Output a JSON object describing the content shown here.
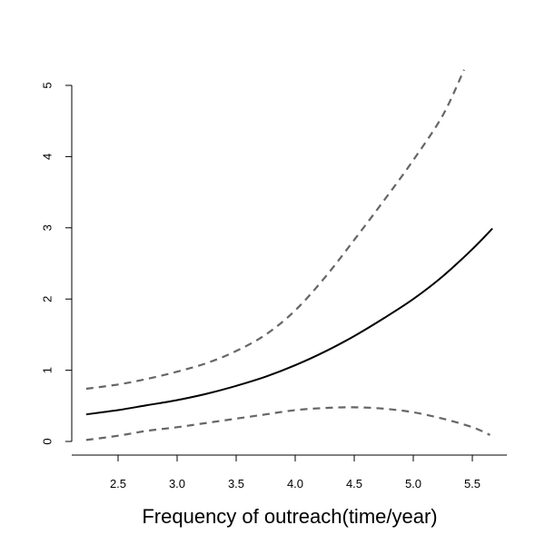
{
  "chart_data": {
    "type": "line",
    "title": "",
    "xlabel": "Frequency of outreach(time/year)",
    "ylabel": "",
    "xlim": [
      2.2,
      5.8
    ],
    "ylim": [
      0,
      5.3
    ],
    "x_ticks": [
      2.5,
      3.0,
      3.5,
      4.0,
      4.5,
      5.0,
      5.5
    ],
    "x_tick_labels": [
      "2.5",
      "3.0",
      "3.5",
      "4.0",
      "4.5",
      "5.0",
      "5.5"
    ],
    "y_ticks": [
      0,
      1,
      2,
      3,
      4,
      5
    ],
    "y_tick_labels": [
      "0",
      "1",
      "2",
      "3",
      "4",
      "5"
    ],
    "grid": false,
    "legend": "none",
    "colors": {
      "estimate": "#000000",
      "bounds": "#666666"
    },
    "series": [
      {
        "style": "solid",
        "x": [
          2.23,
          2.5,
          2.75,
          3.0,
          3.25,
          3.5,
          3.75,
          4.0,
          4.25,
          4.5,
          4.75,
          5.0,
          5.25,
          5.5,
          5.67
        ],
        "y": [
          0.38,
          0.44,
          0.51,
          0.58,
          0.67,
          0.78,
          0.91,
          1.07,
          1.26,
          1.48,
          1.73,
          2.0,
          2.32,
          2.7,
          2.99
        ]
      },
      {
        "style": "dashed",
        "x": [
          2.23,
          2.5,
          2.75,
          3.0,
          3.25,
          3.5,
          3.75,
          4.0,
          4.25,
          4.5,
          4.75,
          5.0,
          5.25,
          5.43
        ],
        "y": [
          0.74,
          0.8,
          0.88,
          0.98,
          1.1,
          1.27,
          1.5,
          1.84,
          2.3,
          2.83,
          3.38,
          3.95,
          4.58,
          5.22
        ]
      },
      {
        "style": "dashed",
        "x": [
          2.23,
          2.5,
          2.75,
          3.0,
          3.25,
          3.5,
          3.75,
          4.0,
          4.25,
          4.5,
          4.75,
          5.0,
          5.25,
          5.5,
          5.65
        ],
        "y": [
          0.02,
          0.08,
          0.15,
          0.2,
          0.26,
          0.32,
          0.38,
          0.44,
          0.47,
          0.48,
          0.46,
          0.41,
          0.32,
          0.2,
          0.09
        ]
      }
    ]
  }
}
